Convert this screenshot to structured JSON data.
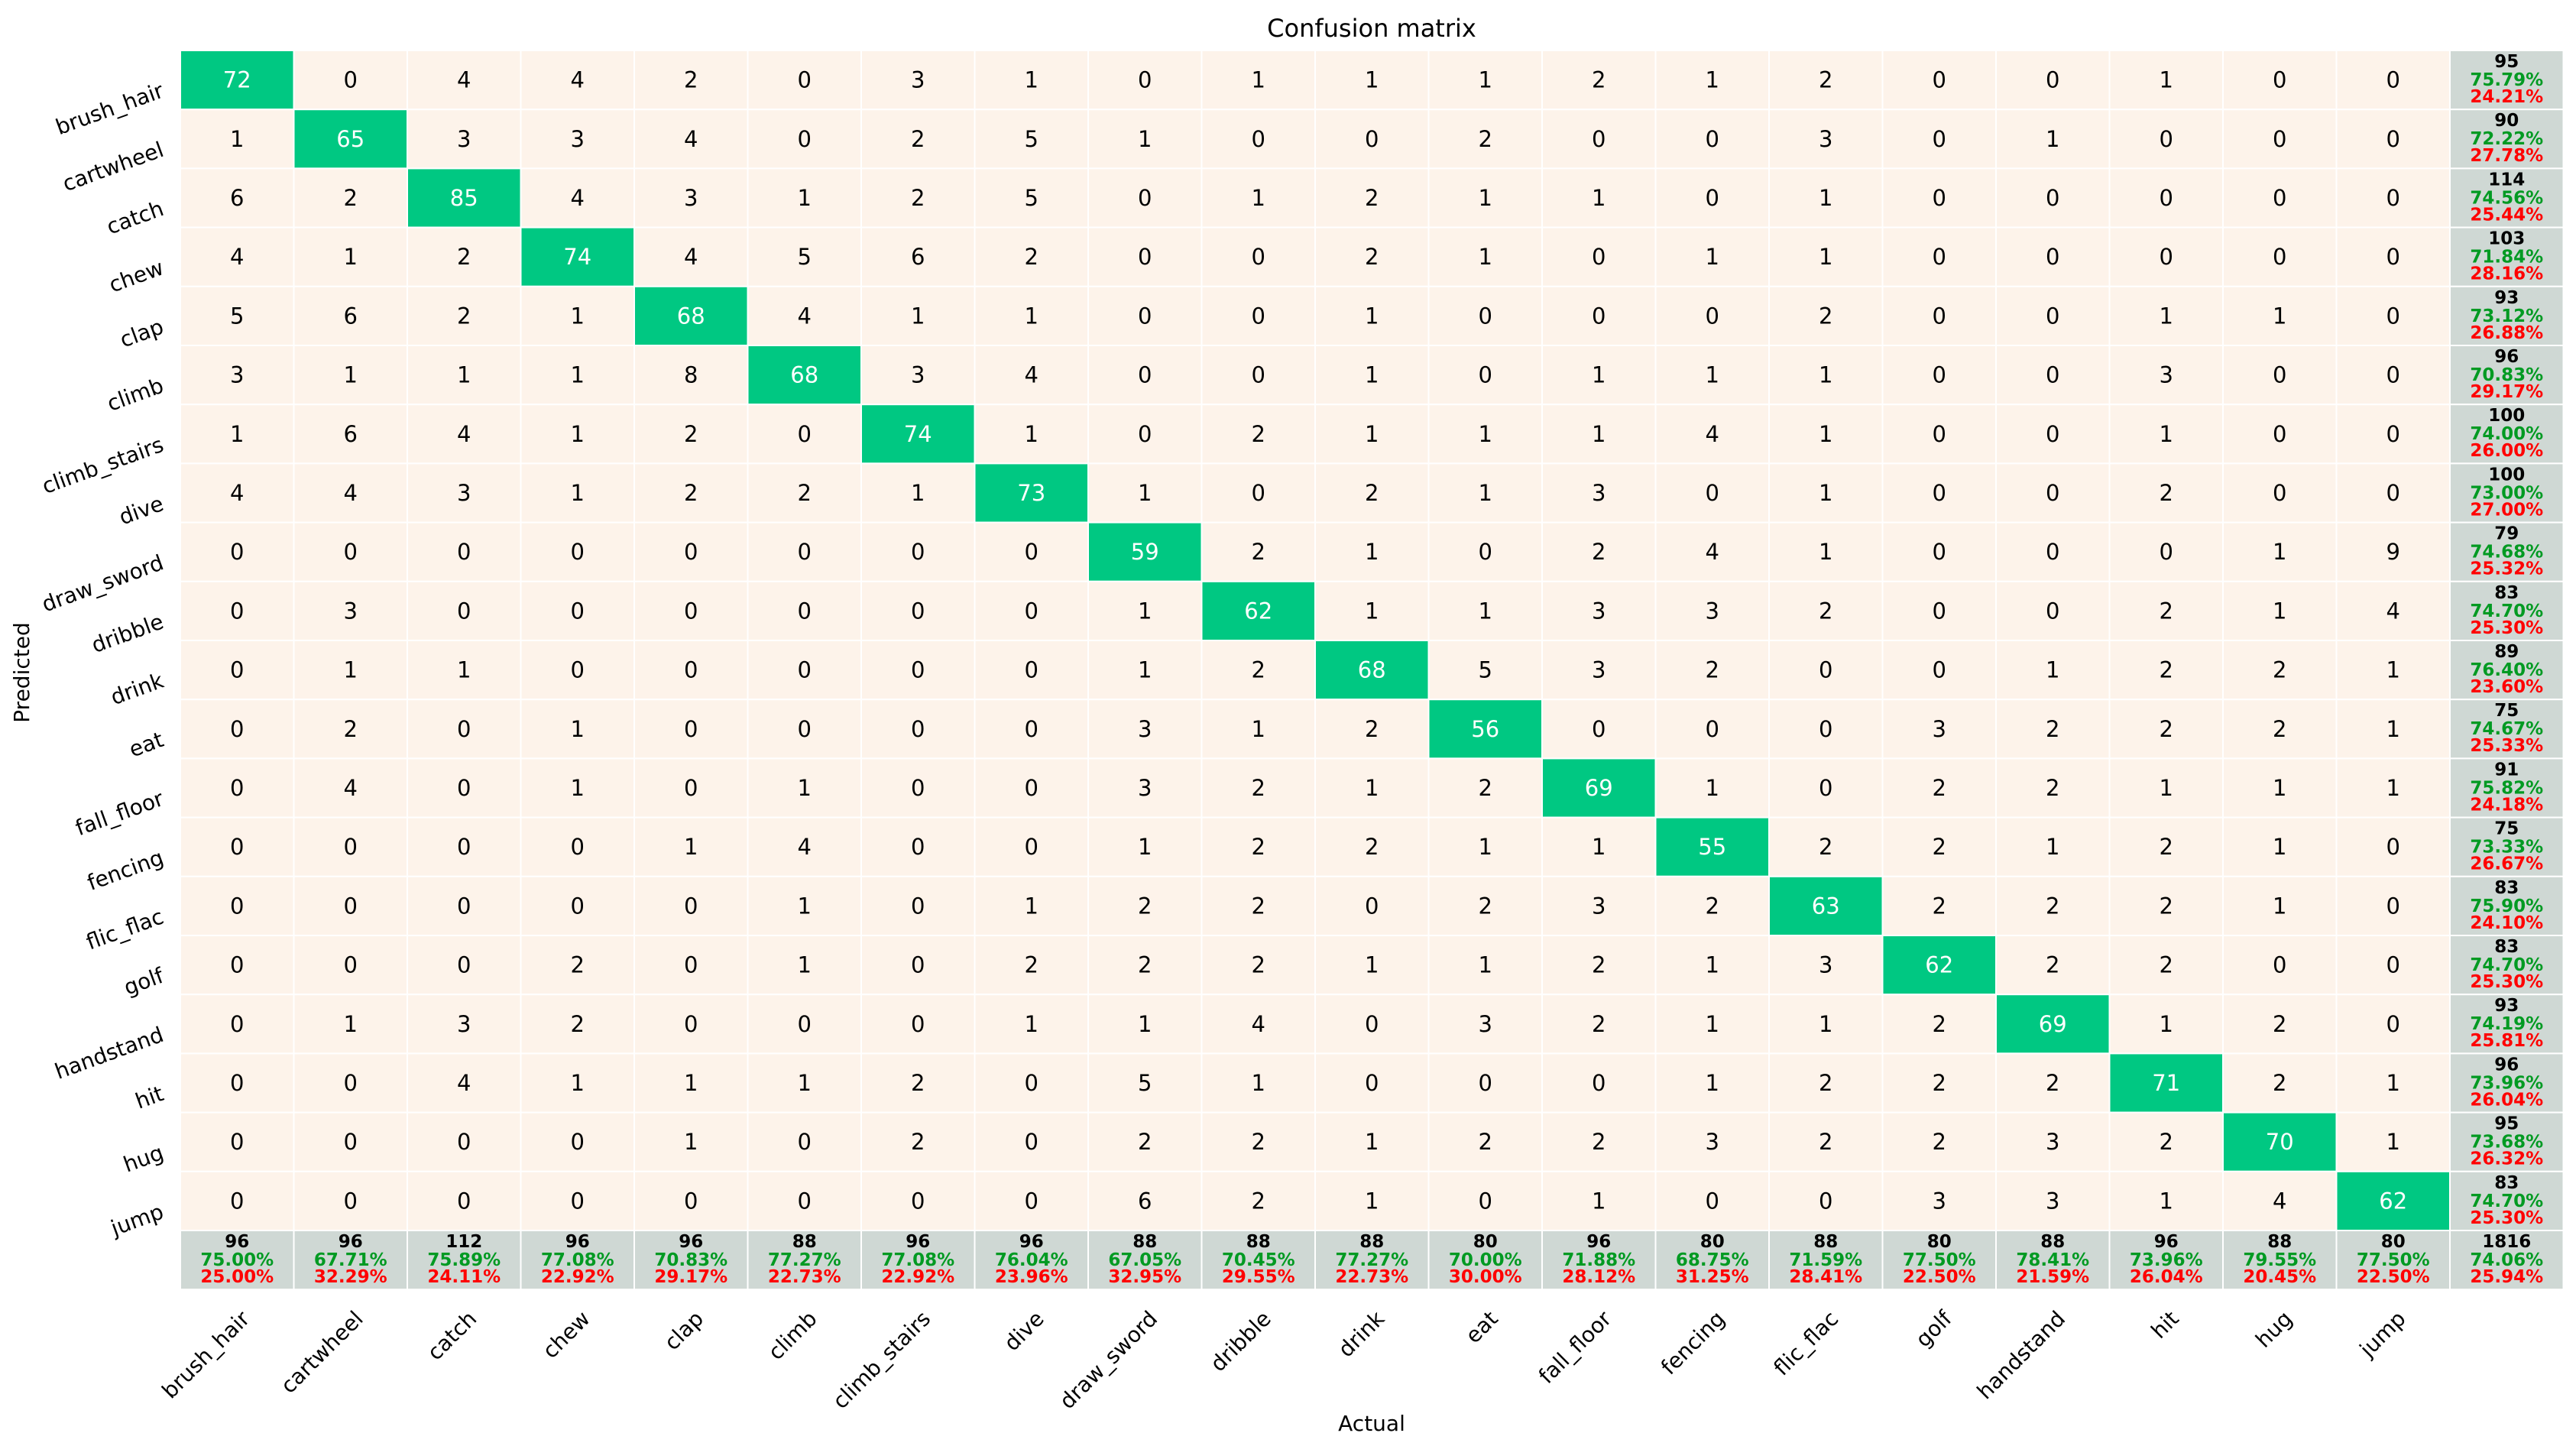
{
  "chart_data": {
    "type": "heatmap",
    "title": "Confusion matrix",
    "xlabel": "Actual",
    "ylabel": "Predicted",
    "classes": [
      "brush_hair",
      "cartwheel",
      "catch",
      "chew",
      "clap",
      "climb",
      "climb_stairs",
      "dive",
      "draw_sword",
      "dribble",
      "drink",
      "eat",
      "fall_floor",
      "fencing",
      "flic_flac",
      "golf",
      "handstand",
      "hit",
      "hug",
      "jump"
    ],
    "matrix": [
      [
        72,
        0,
        4,
        4,
        2,
        0,
        3,
        1,
        0,
        1,
        1,
        1,
        2,
        1,
        2,
        0,
        0,
        1,
        0,
        0
      ],
      [
        1,
        65,
        3,
        3,
        4,
        0,
        2,
        5,
        1,
        0,
        0,
        2,
        0,
        0,
        3,
        0,
        1,
        0,
        0,
        0
      ],
      [
        6,
        2,
        85,
        4,
        3,
        1,
        2,
        5,
        0,
        1,
        2,
        1,
        1,
        0,
        1,
        0,
        0,
        0,
        0,
        0
      ],
      [
        4,
        1,
        2,
        74,
        4,
        5,
        6,
        2,
        0,
        0,
        2,
        1,
        0,
        1,
        1,
        0,
        0,
        0,
        0,
        0
      ],
      [
        5,
        6,
        2,
        1,
        68,
        4,
        1,
        1,
        0,
        0,
        1,
        0,
        0,
        0,
        2,
        0,
        0,
        1,
        1,
        0
      ],
      [
        3,
        1,
        1,
        1,
        8,
        68,
        3,
        4,
        0,
        0,
        1,
        0,
        1,
        1,
        1,
        0,
        0,
        3,
        0,
        0
      ],
      [
        1,
        6,
        4,
        1,
        2,
        0,
        74,
        1,
        0,
        2,
        1,
        1,
        1,
        4,
        1,
        0,
        0,
        1,
        0,
        0
      ],
      [
        4,
        4,
        3,
        1,
        2,
        2,
        1,
        73,
        1,
        0,
        2,
        1,
        3,
        0,
        1,
        0,
        0,
        2,
        0,
        0
      ],
      [
        0,
        0,
        0,
        0,
        0,
        0,
        0,
        0,
        59,
        2,
        1,
        0,
        2,
        4,
        1,
        0,
        0,
        0,
        1,
        9
      ],
      [
        0,
        3,
        0,
        0,
        0,
        0,
        0,
        0,
        1,
        62,
        1,
        1,
        3,
        3,
        2,
        0,
        0,
        2,
        1,
        4
      ],
      [
        0,
        1,
        1,
        0,
        0,
        0,
        0,
        0,
        1,
        2,
        68,
        5,
        3,
        2,
        0,
        0,
        1,
        2,
        2,
        1
      ],
      [
        0,
        2,
        0,
        1,
        0,
        0,
        0,
        0,
        3,
        1,
        2,
        56,
        0,
        0,
        0,
        3,
        2,
        2,
        2,
        1
      ],
      [
        0,
        4,
        0,
        1,
        0,
        1,
        0,
        0,
        3,
        2,
        1,
        2,
        69,
        1,
        0,
        2,
        2,
        1,
        1,
        1
      ],
      [
        0,
        0,
        0,
        0,
        1,
        4,
        0,
        0,
        1,
        2,
        2,
        1,
        1,
        55,
        2,
        2,
        1,
        2,
        1,
        0
      ],
      [
        0,
        0,
        0,
        0,
        0,
        1,
        0,
        1,
        2,
        2,
        0,
        2,
        3,
        2,
        63,
        2,
        2,
        2,
        1,
        0
      ],
      [
        0,
        0,
        0,
        2,
        0,
        1,
        0,
        2,
        2,
        2,
        1,
        1,
        2,
        1,
        3,
        62,
        2,
        2,
        0,
        0
      ],
      [
        0,
        1,
        3,
        2,
        0,
        0,
        0,
        1,
        1,
        4,
        0,
        3,
        2,
        1,
        1,
        2,
        69,
        1,
        2,
        0
      ],
      [
        0,
        0,
        4,
        1,
        1,
        1,
        2,
        0,
        5,
        1,
        0,
        0,
        0,
        1,
        2,
        2,
        2,
        71,
        2,
        1
      ],
      [
        0,
        0,
        0,
        0,
        1,
        0,
        2,
        0,
        2,
        2,
        1,
        2,
        2,
        3,
        2,
        2,
        3,
        2,
        70,
        1
      ],
      [
        0,
        0,
        0,
        0,
        0,
        0,
        0,
        0,
        6,
        2,
        1,
        0,
        1,
        0,
        0,
        3,
        3,
        1,
        4,
        62
      ]
    ],
    "row_summary": [
      {
        "total": "95",
        "correct": "75.79%",
        "error": "24.21%"
      },
      {
        "total": "90",
        "correct": "72.22%",
        "error": "27.78%"
      },
      {
        "total": "114",
        "correct": "74.56%",
        "error": "25.44%"
      },
      {
        "total": "103",
        "correct": "71.84%",
        "error": "28.16%"
      },
      {
        "total": "93",
        "correct": "73.12%",
        "error": "26.88%"
      },
      {
        "total": "96",
        "correct": "70.83%",
        "error": "29.17%"
      },
      {
        "total": "100",
        "correct": "74.00%",
        "error": "26.00%"
      },
      {
        "total": "100",
        "correct": "73.00%",
        "error": "27.00%"
      },
      {
        "total": "79",
        "correct": "74.68%",
        "error": "25.32%"
      },
      {
        "total": "83",
        "correct": "74.70%",
        "error": "25.30%"
      },
      {
        "total": "89",
        "correct": "76.40%",
        "error": "23.60%"
      },
      {
        "total": "75",
        "correct": "74.67%",
        "error": "25.33%"
      },
      {
        "total": "91",
        "correct": "75.82%",
        "error": "24.18%"
      },
      {
        "total": "75",
        "correct": "73.33%",
        "error": "26.67%"
      },
      {
        "total": "83",
        "correct": "75.90%",
        "error": "24.10%"
      },
      {
        "total": "83",
        "correct": "74.70%",
        "error": "25.30%"
      },
      {
        "total": "93",
        "correct": "74.19%",
        "error": "25.81%"
      },
      {
        "total": "96",
        "correct": "73.96%",
        "error": "26.04%"
      },
      {
        "total": "95",
        "correct": "73.68%",
        "error": "26.32%"
      },
      {
        "total": "83",
        "correct": "74.70%",
        "error": "25.30%"
      }
    ],
    "col_summary": [
      {
        "total": "96",
        "correct": "75.00%",
        "error": "25.00%"
      },
      {
        "total": "96",
        "correct": "67.71%",
        "error": "32.29%"
      },
      {
        "total": "112",
        "correct": "75.89%",
        "error": "24.11%"
      },
      {
        "total": "96",
        "correct": "77.08%",
        "error": "22.92%"
      },
      {
        "total": "96",
        "correct": "70.83%",
        "error": "29.17%"
      },
      {
        "total": "88",
        "correct": "77.27%",
        "error": "22.73%"
      },
      {
        "total": "96",
        "correct": "77.08%",
        "error": "22.92%"
      },
      {
        "total": "96",
        "correct": "76.04%",
        "error": "23.96%"
      },
      {
        "total": "88",
        "correct": "67.05%",
        "error": "32.95%"
      },
      {
        "total": "88",
        "correct": "70.45%",
        "error": "29.55%"
      },
      {
        "total": "88",
        "correct": "77.27%",
        "error": "22.73%"
      },
      {
        "total": "80",
        "correct": "70.00%",
        "error": "30.00%"
      },
      {
        "total": "96",
        "correct": "71.88%",
        "error": "28.12%"
      },
      {
        "total": "80",
        "correct": "68.75%",
        "error": "31.25%"
      },
      {
        "total": "88",
        "correct": "71.59%",
        "error": "28.41%"
      },
      {
        "total": "80",
        "correct": "77.50%",
        "error": "22.50%"
      },
      {
        "total": "88",
        "correct": "78.41%",
        "error": "21.59%"
      },
      {
        "total": "96",
        "correct": "73.96%",
        "error": "26.04%"
      },
      {
        "total": "88",
        "correct": "79.55%",
        "error": "20.45%"
      },
      {
        "total": "80",
        "correct": "77.50%",
        "error": "22.50%"
      }
    ],
    "overall_summary": {
      "total": "1816",
      "correct": "74.06%",
      "error": "25.94%"
    },
    "colors": {
      "diagonal": "#00c882",
      "off_diagonal": "#fdf3ea",
      "summary": "#cfd8d4",
      "grid": "#ffffff",
      "correct_text": "#009a22",
      "error_text": "#ff0000"
    },
    "grid": false
  }
}
